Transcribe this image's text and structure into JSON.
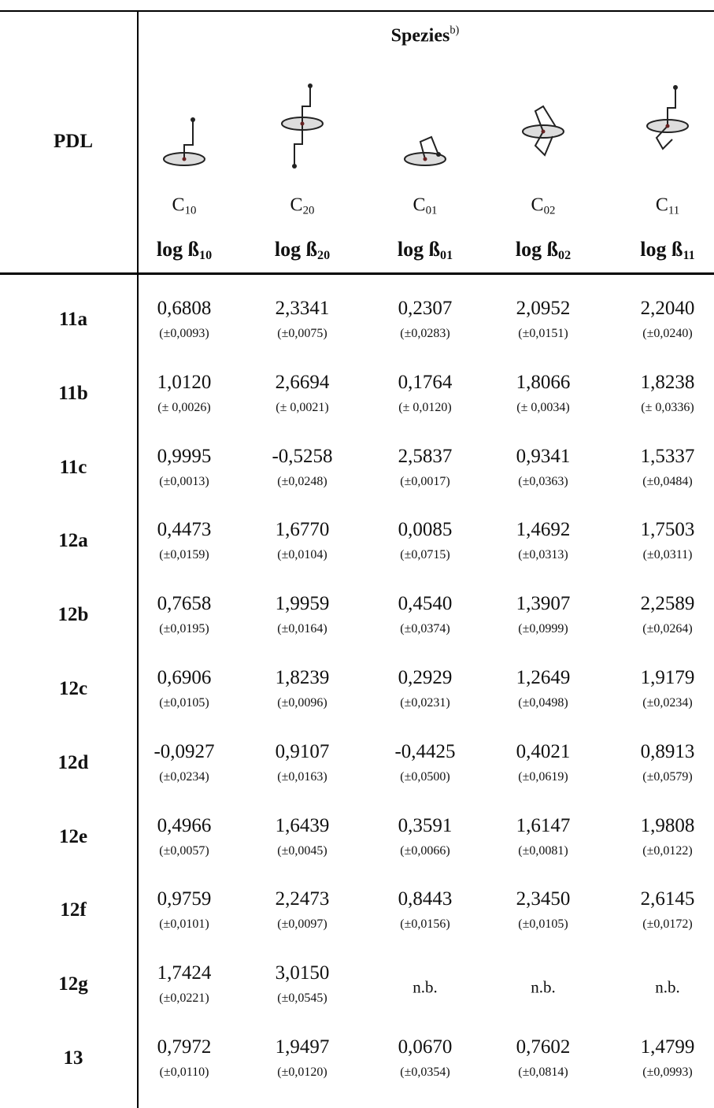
{
  "header": {
    "row_label": "PDL",
    "group_title": {
      "text": "Spezies",
      "sup": "b)"
    },
    "species": [
      {
        "name": {
          "base": "C",
          "sub": "10"
        },
        "constant": {
          "base": "log ß",
          "sub": "10"
        }
      },
      {
        "name": {
          "base": "C",
          "sub": "20"
        },
        "constant": {
          "base": "log ß",
          "sub": "20"
        }
      },
      {
        "name": {
          "base": "C",
          "sub": "01"
        },
        "constant": {
          "base": "log ß",
          "sub": "01"
        }
      },
      {
        "name": {
          "base": "C",
          "sub": "02"
        },
        "constant": {
          "base": "log ß",
          "sub": "02"
        }
      },
      {
        "name": {
          "base": "C",
          "sub": "11"
        },
        "constant": {
          "base": "log ß",
          "sub": "11"
        }
      }
    ]
  },
  "rows": [
    {
      "label": "11a",
      "cells": [
        {
          "value": "0,6808",
          "error": "(±0,0093)"
        },
        {
          "value": "2,3341",
          "error": "(±0,0075)"
        },
        {
          "value": "0,2307",
          "error": "(±0,0283)"
        },
        {
          "value": "2,0952",
          "error": "(±0,0151)"
        },
        {
          "value": "2,2040",
          "error": "(±0,0240)"
        }
      ]
    },
    {
      "label": "11b",
      "cells": [
        {
          "value": "1,0120",
          "error": "(± 0,0026)"
        },
        {
          "value": "2,6694",
          "error": "(± 0,0021)"
        },
        {
          "value": "0,1764",
          "error": "(± 0,0120)"
        },
        {
          "value": "1,8066",
          "error": "(± 0,0034)"
        },
        {
          "value": "1,8238",
          "error": "(± 0,0336)"
        }
      ]
    },
    {
      "label": "11c",
      "cells": [
        {
          "value": "0,9995",
          "error": "(±0,0013)"
        },
        {
          "value": "-0,5258",
          "error": "(±0,0248)"
        },
        {
          "value": "2,5837",
          "error": "(±0,0017)"
        },
        {
          "value": "0,9341",
          "error": "(±0,0363)"
        },
        {
          "value": "1,5337",
          "error": "(±0,0484)"
        }
      ]
    },
    {
      "label": "12a",
      "cells": [
        {
          "value": "0,4473",
          "error": "(±0,0159)"
        },
        {
          "value": "1,6770",
          "error": "(±0,0104)"
        },
        {
          "value": "0,0085",
          "error": "(±0,0715)"
        },
        {
          "value": "1,4692",
          "error": "(±0,0313)"
        },
        {
          "value": "1,7503",
          "error": "(±0,0311)"
        }
      ]
    },
    {
      "label": "12b",
      "cells": [
        {
          "value": "0,7658",
          "error": "(±0,0195)"
        },
        {
          "value": "1,9959",
          "error": "(±0,0164)"
        },
        {
          "value": "0,4540",
          "error": "(±0,0374)"
        },
        {
          "value": "1,3907",
          "error": "(±0,0999)"
        },
        {
          "value": "2,2589",
          "error": "(±0,0264)"
        }
      ]
    },
    {
      "label": "12c",
      "cells": [
        {
          "value": "0,6906",
          "error": "(±0,0105)"
        },
        {
          "value": "1,8239",
          "error": "(±0,0096)"
        },
        {
          "value": "0,2929",
          "error": "(±0,0231)"
        },
        {
          "value": "1,2649",
          "error": "(±0,0498)"
        },
        {
          "value": "1,9179",
          "error": "(±0,0234)"
        }
      ]
    },
    {
      "label": "12d",
      "cells": [
        {
          "value": "-0,0927",
          "error": "(±0,0234)"
        },
        {
          "value": "0,9107",
          "error": "(±0,0163)"
        },
        {
          "value": "-0,4425",
          "error": "(±0,0500)"
        },
        {
          "value": "0,4021",
          "error": "(±0,0619)"
        },
        {
          "value": "0,8913",
          "error": "(±0,0579)"
        }
      ]
    },
    {
      "label": "12e",
      "cells": [
        {
          "value": "0,4966",
          "error": "(±0,0057)"
        },
        {
          "value": "1,6439",
          "error": "(±0,0045)"
        },
        {
          "value": "0,3591",
          "error": "(±0,0066)"
        },
        {
          "value": "1,6147",
          "error": "(±0,0081)"
        },
        {
          "value": "1,9808",
          "error": "(±0,0122)"
        }
      ]
    },
    {
      "label": "12f",
      "cells": [
        {
          "value": "0,9759",
          "error": "(±0,0101)"
        },
        {
          "value": "2,2473",
          "error": "(±0,0097)"
        },
        {
          "value": "0,8443",
          "error": "(±0,0156)"
        },
        {
          "value": "2,3450",
          "error": "(±0,0105)"
        },
        {
          "value": "2,6145",
          "error": "(±0,0172)"
        }
      ]
    },
    {
      "label": "12g",
      "cells": [
        {
          "value": "1,7424",
          "error": "(±0,0221)"
        },
        {
          "value": "3,0150",
          "error": "(±0,0545)"
        },
        {
          "value": "n.b."
        },
        {
          "value": "n.b."
        },
        {
          "value": "n.b."
        }
      ]
    },
    {
      "label": "13",
      "cells": [
        {
          "value": "0,7972",
          "error": "(±0,0110)"
        },
        {
          "value": "1,9497",
          "error": "(±0,0120)"
        },
        {
          "value": "0,0670",
          "error": "(±0,0354)"
        },
        {
          "value": "0,7602",
          "error": "(±0,0814)"
        },
        {
          "value": "1,4799",
          "error": "(±0,0993)"
        }
      ]
    }
  ]
}
